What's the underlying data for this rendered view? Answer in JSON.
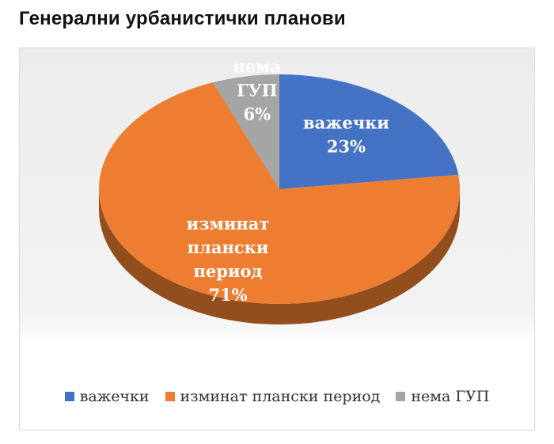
{
  "title": "Генерални урбанистички планови",
  "chart_data": {
    "type": "pie",
    "title": "",
    "slices": [
      {
        "label_lines": [
          "важечки"
        ],
        "legend": "важечки",
        "value": 23,
        "display": "23%",
        "color": "#4472C4"
      },
      {
        "label_lines": [
          "изминат",
          "плански",
          "период"
        ],
        "legend": "изминат плански период",
        "value": 71,
        "display": "71%",
        "color": "#ED7D31"
      },
      {
        "label_lines": [
          "нема",
          "ГУП"
        ],
        "legend": "нема ГУП",
        "value": 6,
        "display": "6%",
        "color": "#A5A5A5"
      }
    ],
    "start_angle": "12 o'clock",
    "direction": "clockwise",
    "style": "3d",
    "legend_position": "bottom"
  }
}
